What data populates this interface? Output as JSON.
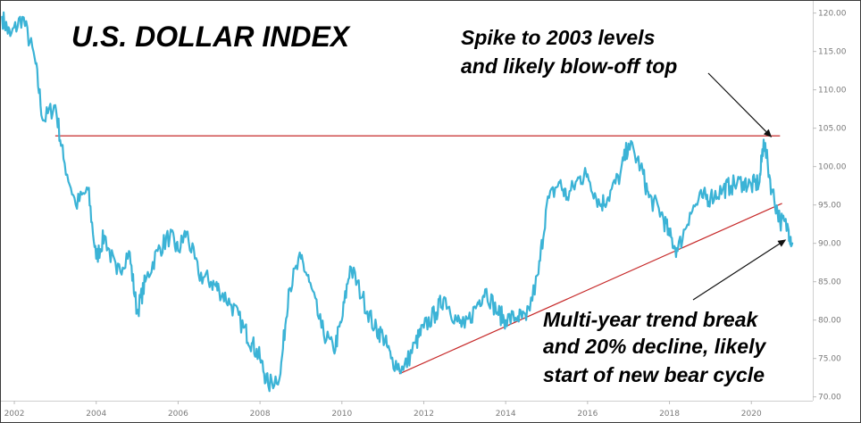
{
  "chart_data": {
    "type": "line",
    "title": "U.S. DOLLAR INDEX",
    "xlabel": "",
    "ylabel": "",
    "xlim": [
      2001.65,
      2021.5
    ],
    "ylim": [
      69.5,
      121.7
    ],
    "x_ticks": [
      "2002",
      "2004",
      "2006",
      "2008",
      "2010",
      "2012",
      "2014",
      "2016",
      "2018",
      "2020"
    ],
    "y_ticks": [
      "70.00",
      "75.00",
      "80.00",
      "85.00",
      "90.00",
      "95.00",
      "100.00",
      "105.00",
      "110.00",
      "115.00",
      "120.00"
    ],
    "grid": false,
    "line_color": "#3bb3d6",
    "trendline_color": "#c62828",
    "series": [
      {
        "x": [
          2001.7,
          2001.9,
          2002.2,
          2002.5,
          2002.7,
          2003.0,
          2003.2,
          2003.5,
          2003.8,
          2004.0,
          2004.2,
          2004.5,
          2004.8,
          2005.0,
          2005.2,
          2005.5,
          2005.8,
          2006.0,
          2006.2,
          2006.5,
          2006.8,
          2007.0,
          2007.3,
          2007.6,
          2007.8,
          2008.0,
          2008.2,
          2008.5,
          2008.7,
          2009.0,
          2009.2,
          2009.5,
          2009.8,
          2010.0,
          2010.2,
          2010.5,
          2010.8,
          2011.0,
          2011.2,
          2011.5,
          2011.8,
          2012.0,
          2012.3,
          2012.5,
          2012.8,
          2013.0,
          2013.3,
          2013.5,
          2013.8,
          2014.0,
          2014.3,
          2014.5,
          2014.8,
          2015.0,
          2015.3,
          2015.5,
          2015.8,
          2016.0,
          2016.3,
          2016.5,
          2016.8,
          2017.0,
          2017.3,
          2017.5,
          2017.8,
          2018.0,
          2018.2,
          2018.5,
          2018.8,
          2019.0,
          2019.3,
          2019.5,
          2019.8,
          2020.0,
          2020.2,
          2020.3,
          2020.5,
          2020.7,
          2020.9,
          2021.0
        ],
        "y": [
          119.5,
          117.0,
          119.5,
          114.0,
          106.0,
          108.0,
          101.0,
          95.0,
          97.0,
          88.0,
          91.0,
          86.0,
          89.0,
          81.0,
          85.0,
          89.0,
          91.0,
          89.0,
          91.5,
          86.0,
          85.0,
          84.0,
          82.0,
          79.0,
          77.0,
          75.0,
          71.5,
          73.0,
          84.0,
          88.0,
          85.0,
          79.0,
          76.0,
          80.0,
          87.0,
          83.0,
          79.0,
          78.0,
          75.0,
          73.5,
          77.0,
          79.0,
          81.0,
          83.0,
          80.0,
          79.0,
          82.0,
          84.0,
          81.0,
          80.0,
          80.5,
          80.0,
          86.0,
          95.0,
          98.0,
          96.0,
          98.5,
          99.0,
          95.0,
          96.0,
          99.0,
          103.0,
          100.0,
          96.0,
          94.0,
          91.0,
          89.0,
          94.0,
          96.0,
          96.0,
          97.0,
          97.5,
          98.0,
          97.5,
          98.0,
          103.5,
          97.0,
          93.0,
          92.0,
          90.0
        ]
      }
    ],
    "trendlines": [
      {
        "x": [
          2003.0,
          2020.7
        ],
        "y": [
          104.0,
          104.0
        ]
      },
      {
        "x": [
          2011.4,
          2020.75
        ],
        "y": [
          73.0,
          95.2
        ]
      }
    ],
    "annotations": [
      {
        "lines": [
          "Spike to 2003 levels",
          "and likely blow-off top"
        ],
        "arrow_to": [
          2020.5,
          103.8
        ]
      },
      {
        "lines": [
          "Multi-year trend break",
          "and 20% decline, likely",
          "start of new bear cycle"
        ],
        "arrow_to": [
          2020.85,
          90.5
        ]
      }
    ]
  }
}
